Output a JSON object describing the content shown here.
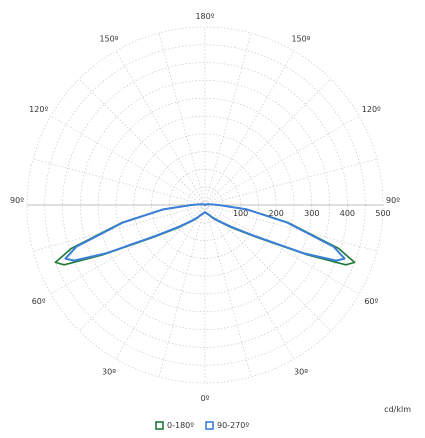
{
  "chart_data": {
    "type": "polar-line",
    "unit": "cd/klm",
    "radial_max": 500,
    "radial_ticks": [
      {
        "value": 100,
        "label": "100"
      },
      {
        "value": 200,
        "label": "200"
      },
      {
        "value": 300,
        "label": "300"
      },
      {
        "value": 400,
        "label": "400"
      },
      {
        "value": 500,
        "label": "500"
      }
    ],
    "grid_ring_values": [
      50,
      100,
      150,
      200,
      250,
      300,
      350,
      400,
      450,
      500
    ],
    "angle_labels": [
      {
        "side": "left",
        "angle": 0,
        "label": "0º"
      },
      {
        "side": "left",
        "angle": 30,
        "label": "30º"
      },
      {
        "side": "left",
        "angle": 60,
        "label": "60º"
      },
      {
        "side": "left",
        "angle": 90,
        "label": "90º"
      },
      {
        "side": "left",
        "angle": 120,
        "label": "120º"
      },
      {
        "side": "left",
        "angle": 150,
        "label": "150º"
      },
      {
        "side": "left",
        "angle": 180,
        "label": "180º"
      },
      {
        "side": "right",
        "angle": 30,
        "label": "30º"
      },
      {
        "side": "right",
        "angle": 60,
        "label": "60º"
      },
      {
        "side": "right",
        "angle": 90,
        "label": "90º"
      },
      {
        "side": "right",
        "angle": 120,
        "label": "120º"
      },
      {
        "side": "right",
        "angle": 150,
        "label": "150º"
      }
    ],
    "series": [
      {
        "name": "0-180º",
        "color": "#1f7a3a",
        "points": [
          {
            "angle": 0,
            "value": 20
          },
          {
            "angle": 10,
            "value": 24
          },
          {
            "angle": 20,
            "value": 28
          },
          {
            "angle": 30,
            "value": 42
          },
          {
            "angle": 40,
            "value": 60
          },
          {
            "angle": 50,
            "value": 100
          },
          {
            "angle": 58,
            "value": 170
          },
          {
            "angle": 64,
            "value": 320
          },
          {
            "angle": 67,
            "value": 430
          },
          {
            "angle": 69,
            "value": 450
          },
          {
            "angle": 72,
            "value": 395
          },
          {
            "angle": 78,
            "value": 240
          },
          {
            "angle": 84,
            "value": 120
          },
          {
            "angle": 90,
            "value": 40
          },
          {
            "angle": 100,
            "value": 12
          },
          {
            "angle": 120,
            "value": 4
          },
          {
            "angle": 150,
            "value": 1
          },
          {
            "angle": 180,
            "value": 0
          }
        ]
      },
      {
        "name": "90-270º",
        "color": "#3a7fd8",
        "points": [
          {
            "angle": 0,
            "value": 20
          },
          {
            "angle": 10,
            "value": 24
          },
          {
            "angle": 20,
            "value": 28
          },
          {
            "angle": 30,
            "value": 40
          },
          {
            "angle": 40,
            "value": 58
          },
          {
            "angle": 50,
            "value": 95
          },
          {
            "angle": 58,
            "value": 165
          },
          {
            "angle": 64,
            "value": 310
          },
          {
            "angle": 67,
            "value": 400
          },
          {
            "angle": 69,
            "value": 420
          },
          {
            "angle": 72,
            "value": 380
          },
          {
            "angle": 78,
            "value": 235
          },
          {
            "angle": 84,
            "value": 118
          },
          {
            "angle": 90,
            "value": 38
          },
          {
            "angle": 100,
            "value": 12
          },
          {
            "angle": 120,
            "value": 4
          },
          {
            "angle": 150,
            "value": 1
          },
          {
            "angle": 180,
            "value": 0
          }
        ]
      }
    ],
    "legend_placement": "bottom-center",
    "grid": true
  }
}
